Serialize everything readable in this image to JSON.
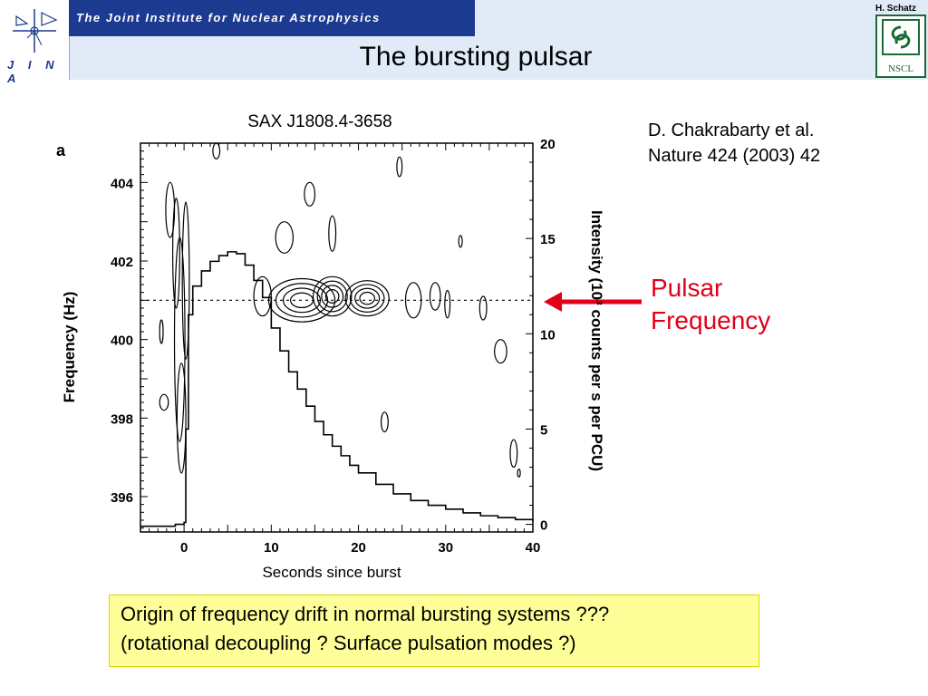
{
  "header": {
    "logo_text": "J I N A",
    "institute": "The Joint Institute for Nuclear Astrophysics",
    "title": "The bursting pulsar",
    "author": "H. Schatz",
    "partner_logo_text": "NSCL"
  },
  "citation": {
    "line1": "D. Chakrabarty et al.",
    "line2": "Nature 424 (2003) 42"
  },
  "annotation": {
    "line1": "Pulsar",
    "line2": "Frequency",
    "color": "#e0001a"
  },
  "question": {
    "line1": "Origin of frequency drift in normal bursting systems ???",
    "line2": "(rotational decoupling ? Surface pulsation modes ?)"
  },
  "chart_data": {
    "type": "line",
    "title": "SAX J1808.4-3658",
    "panel_label": "a",
    "xlabel": "Seconds since burst",
    "ylabel_left": "Frequency (Hz)",
    "ylabel_right": "Intensity (10³ counts per s per PCU)",
    "x_ticks": [
      0,
      10,
      20,
      30,
      40
    ],
    "xlim": [
      -5,
      40
    ],
    "y_left_ticks": [
      396,
      398,
      400,
      402,
      404
    ],
    "y_left_lim": [
      395.1,
      405
    ],
    "y_right_ticks": [
      0,
      5,
      10,
      15,
      20
    ],
    "y_right_lim": [
      -0.4,
      20
    ],
    "reference_line": {
      "frequency_hz": 401.0,
      "style": "dotted"
    },
    "series": [
      {
        "name": "",
        "axis": "right",
        "x": [
          -5,
          -2,
          -1,
          0,
          0.2,
          0.5,
          1,
          2,
          3,
          4,
          5,
          6,
          7,
          8,
          9,
          10,
          11,
          12,
          13,
          14,
          15,
          16,
          17,
          18,
          19,
          20,
          22,
          24,
          26,
          28,
          30,
          32,
          34,
          36,
          38,
          40
        ],
        "y": [
          -0.1,
          -0.1,
          0.0,
          0.1,
          5,
          11,
          12.5,
          13.3,
          13.8,
          14.1,
          14.3,
          14.2,
          13.6,
          12.8,
          11.9,
          10.3,
          9.1,
          8.0,
          7.1,
          6.2,
          5.4,
          4.7,
          4.1,
          3.6,
          3.1,
          2.7,
          2.1,
          1.6,
          1.25,
          1.0,
          0.8,
          0.6,
          0.45,
          0.35,
          0.25,
          0.15
        ]
      }
    ],
    "contours": [
      {
        "x": -1.6,
        "freq": 403.3,
        "rx": 0.5,
        "rfreq": 0.7
      },
      {
        "x": -0.9,
        "freq": 402.2,
        "rx": 0.4,
        "rfreq": 1.4
      },
      {
        "x": -0.5,
        "freq": 400.0,
        "rx": 0.6,
        "rfreq": 2.6
      },
      {
        "x": -0.3,
        "freq": 398.0,
        "rx": 0.5,
        "rfreq": 1.4
      },
      {
        "x": 0.2,
        "freq": 401.5,
        "rx": 0.4,
        "rfreq": 2.0
      },
      {
        "x": 9.0,
        "freq": 401.1,
        "rx": 1.0,
        "rfreq": 0.5
      },
      {
        "x": 13.5,
        "freq": 401.0,
        "rx": 3.8,
        "rfreq": 0.55
      },
      {
        "x": 17.0,
        "freq": 401.1,
        "rx": 2.2,
        "rfreq": 0.5
      },
      {
        "x": 21.0,
        "freq": 401.05,
        "rx": 2.5,
        "rfreq": 0.45
      },
      {
        "x": 26.3,
        "freq": 401.0,
        "rx": 0.9,
        "rfreq": 0.45
      },
      {
        "x": 28.8,
        "freq": 401.1,
        "rx": 0.6,
        "rfreq": 0.35
      },
      {
        "x": 34.3,
        "freq": 400.8,
        "rx": 0.4,
        "rfreq": 0.3
      },
      {
        "x": 3.7,
        "freq": 404.8,
        "rx": 0.4,
        "rfreq": 0.2
      },
      {
        "x": 24.7,
        "freq": 404.4,
        "rx": 0.3,
        "rfreq": 0.25
      },
      {
        "x": 14.4,
        "freq": 403.7,
        "rx": 0.6,
        "rfreq": 0.3
      },
      {
        "x": 11.5,
        "freq": 402.6,
        "rx": 1.0,
        "rfreq": 0.4
      },
      {
        "x": 17.0,
        "freq": 402.7,
        "rx": 0.4,
        "rfreq": 0.45
      },
      {
        "x": 31.7,
        "freq": 402.5,
        "rx": 0.2,
        "rfreq": 0.15
      },
      {
        "x": 30.2,
        "freq": 400.9,
        "rx": 0.3,
        "rfreq": 0.35
      },
      {
        "x": -2.6,
        "freq": 400.2,
        "rx": 0.2,
        "rfreq": 0.3
      },
      {
        "x": -2.3,
        "freq": 398.4,
        "rx": 0.5,
        "rfreq": 0.2
      },
      {
        "x": 36.3,
        "freq": 399.7,
        "rx": 0.7,
        "rfreq": 0.3
      },
      {
        "x": 23.0,
        "freq": 397.9,
        "rx": 0.4,
        "rfreq": 0.25
      },
      {
        "x": 37.8,
        "freq": 397.1,
        "rx": 0.4,
        "rfreq": 0.35
      },
      {
        "x": 38.4,
        "freq": 396.6,
        "rx": 0.15,
        "rfreq": 0.1
      }
    ]
  }
}
